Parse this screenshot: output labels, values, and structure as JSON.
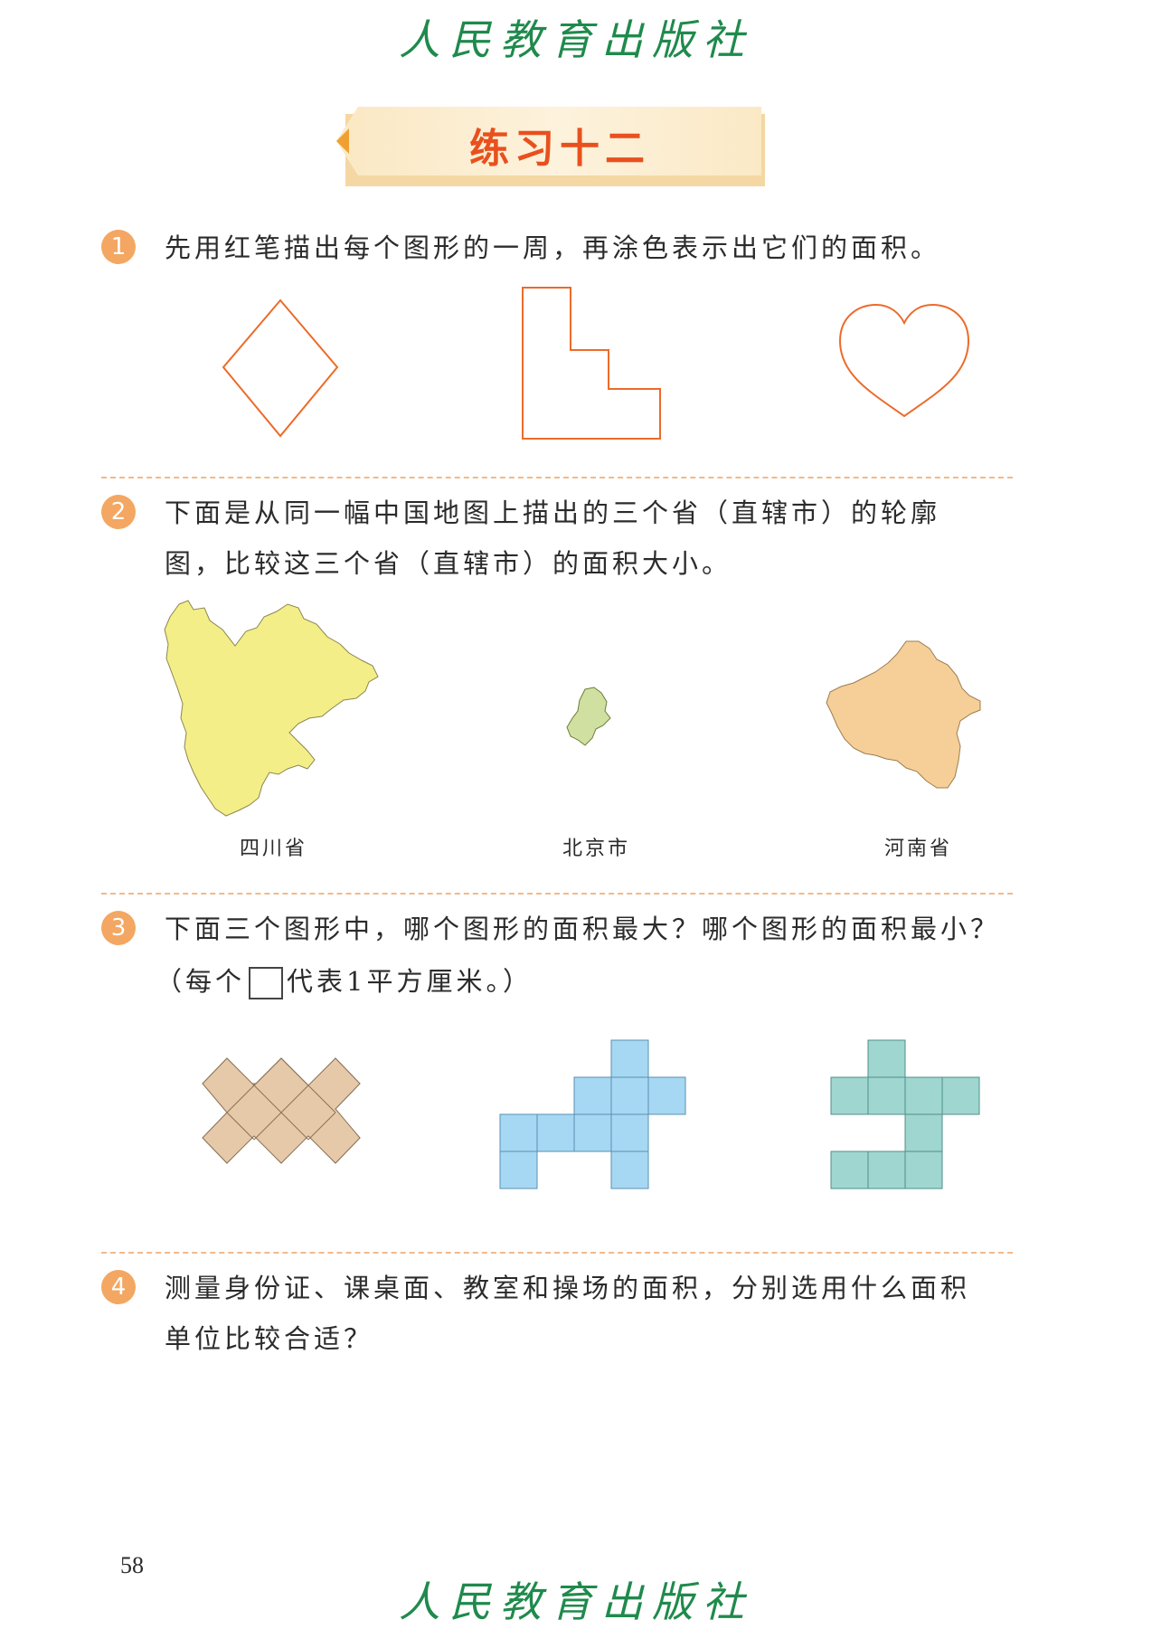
{
  "header": {
    "publisher": "人民教育出版社"
  },
  "title": "练习十二",
  "questions": [
    {
      "number": "1",
      "text": "先用红笔描出每个图形的一周，再涂色表示出它们的面积。"
    },
    {
      "number": "2",
      "line1": "下面是从同一幅中国地图上描出的三个省（直辖市）的轮廓",
      "line2": "图，比较这三个省（直辖市）的面积大小。"
    },
    {
      "number": "3",
      "line1": "下面三个图形中，哪个图形的面积最大？哪个图形的面积最小？",
      "line2_before": "（每个",
      "line2_after": "代表1平方厘米。）"
    },
    {
      "number": "4",
      "line1": "测量身份证、课桌面、教室和操场的面积，分别选用什么面积",
      "line2": "单位比较合适？"
    }
  ],
  "maps": [
    {
      "label": "四川省"
    },
    {
      "label": "北京市"
    },
    {
      "label": "河南省"
    }
  ],
  "colors": {
    "outline": "#ec6b2a",
    "sichuan": "#f4ee88",
    "beijing": "#cfe0a0",
    "henan": "#f6cf98",
    "shape_tan": "#e6c9a8",
    "shape_blue": "#a6d8f3",
    "shape_teal": "#9fd6cf"
  },
  "page_number": "58",
  "footer": {
    "publisher": "人民教育出版社"
  }
}
